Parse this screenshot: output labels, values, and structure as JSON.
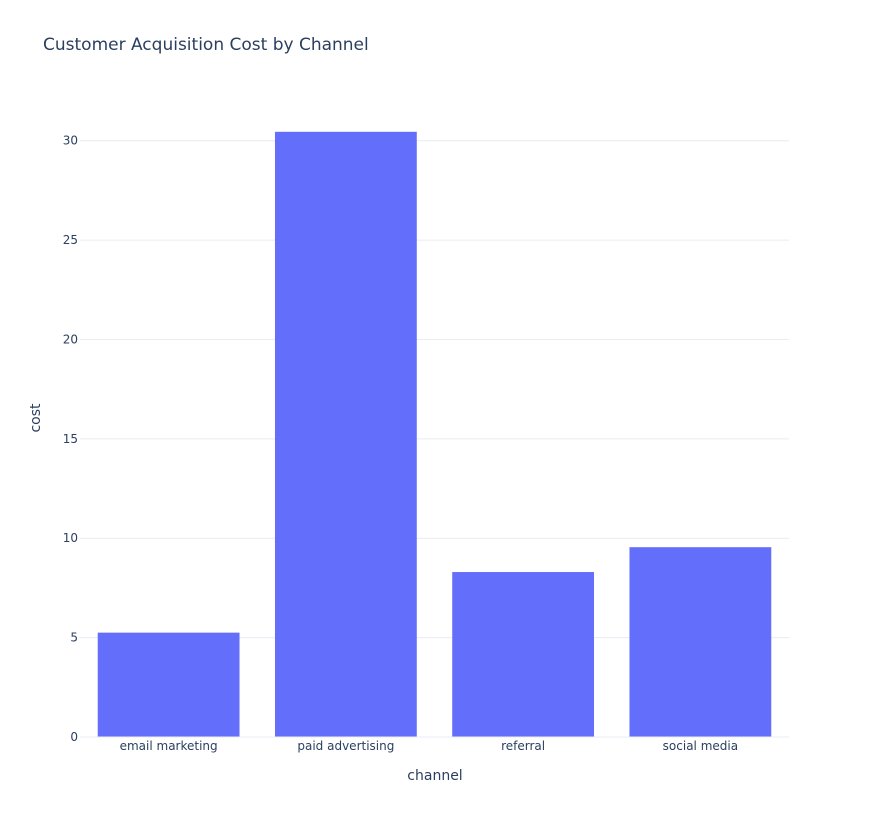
{
  "chart_data": {
    "type": "bar",
    "title": "Customer Acquisition Cost by Channel",
    "xlabel": "channel",
    "ylabel": "cost",
    "categories": [
      "email marketing",
      "paid advertising",
      "referral",
      "social media"
    ],
    "values": [
      5.25,
      30.45,
      8.3,
      9.55
    ],
    "ylim": [
      0,
      32.05
    ],
    "yticks": [
      0,
      5,
      10,
      15,
      20,
      25,
      30
    ],
    "grid": true,
    "bar_color": "#636efa",
    "grid_color": "#e9ecf3",
    "text_color": "#2a3f5f"
  }
}
